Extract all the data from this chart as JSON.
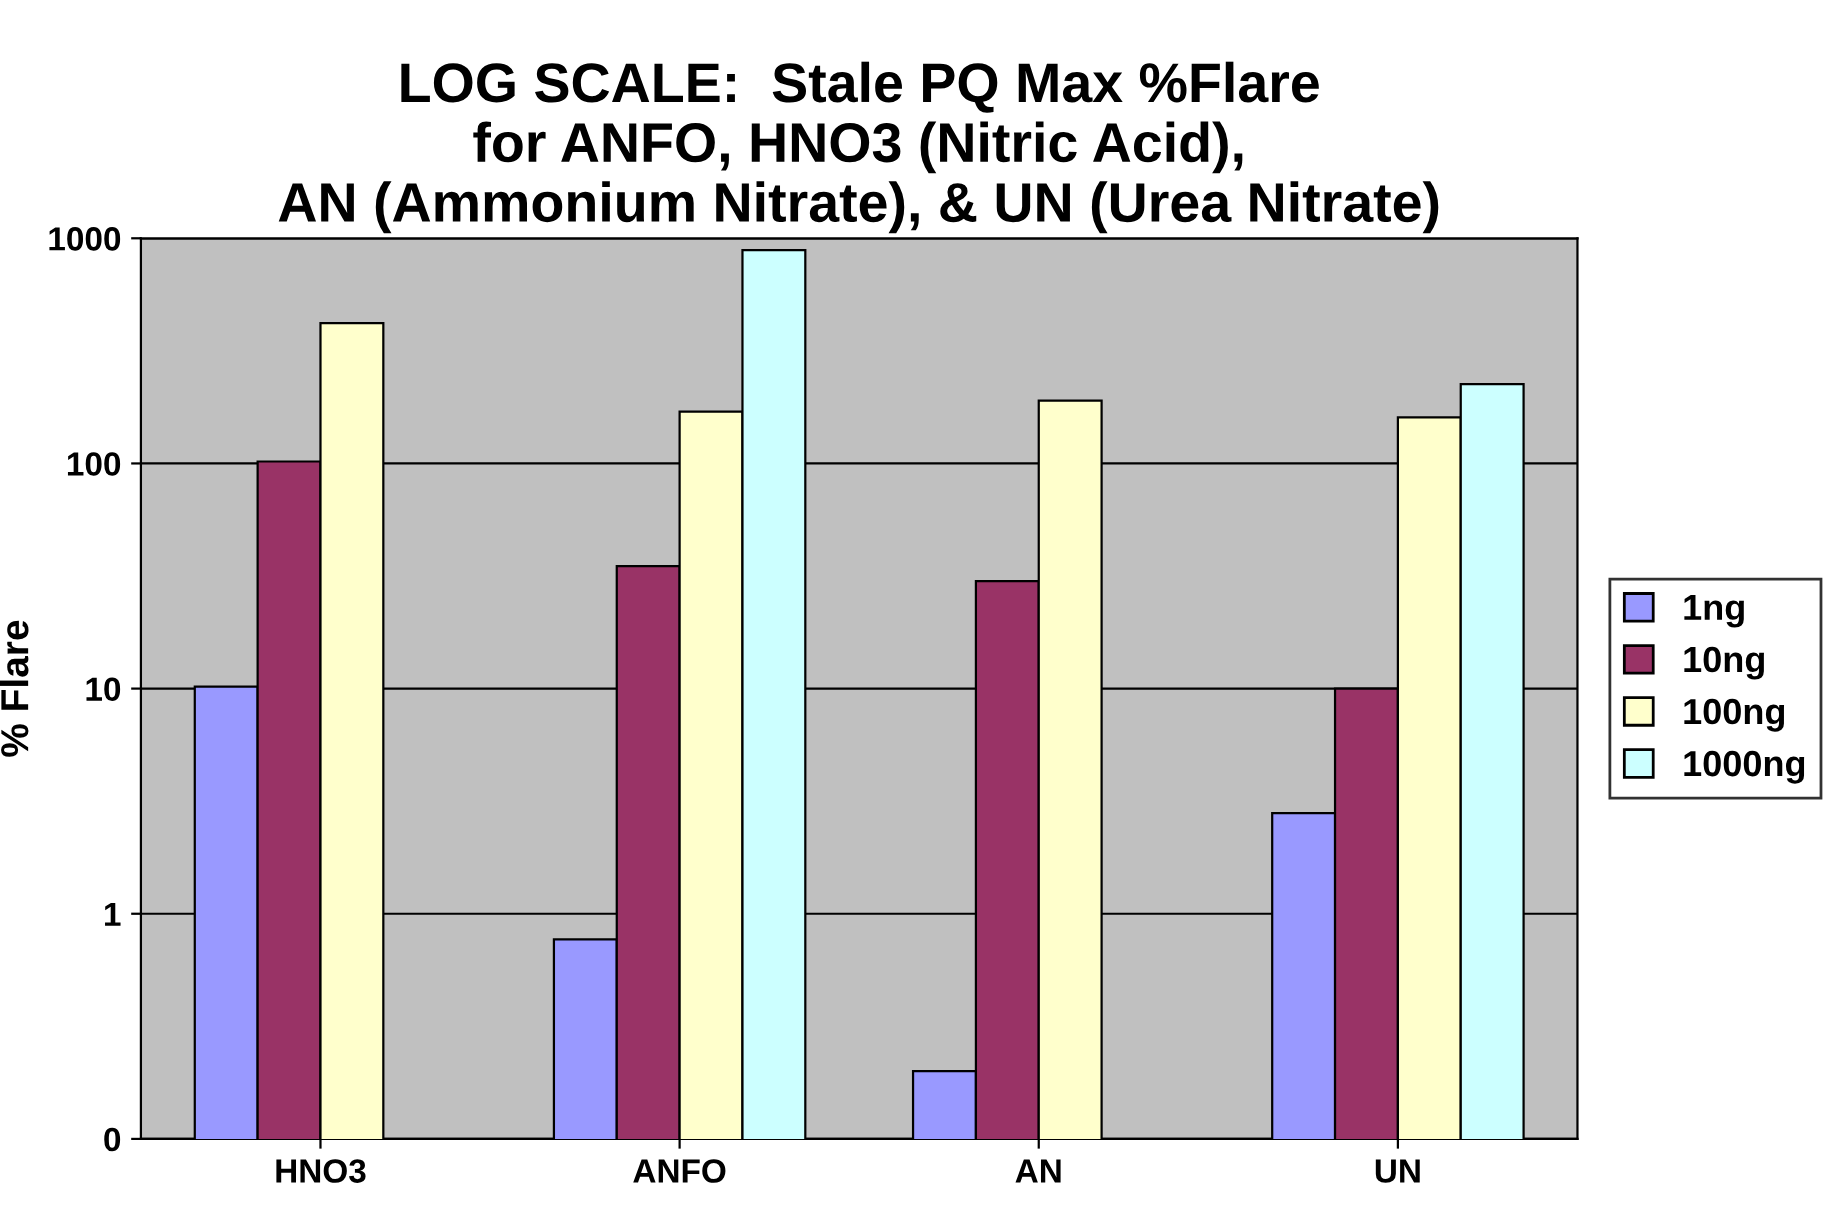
{
  "chart_data": {
    "type": "bar",
    "title": "LOG SCALE:  Stale PQ Max %Flare\nfor ANFO, HNO3 (Nitric Acid),\nAN (Ammonium Nitrate), & UN (Urea Nitrate)",
    "ylabel": "% Flare",
    "categories": [
      "HNO3",
      "ANFO",
      "AN",
      "UN"
    ],
    "series": [
      {
        "name": "1ng",
        "color": "#9999ff",
        "values": [
          10.2,
          0.77,
          0.2,
          2.8
        ]
      },
      {
        "name": "10ng",
        "color": "#993366",
        "values": [
          102,
          35,
          30,
          10
        ]
      },
      {
        "name": "100ng",
        "color": "#ffffcc",
        "values": [
          420,
          170,
          190,
          160
        ]
      },
      {
        "name": "1000ng",
        "color": "#ccffff",
        "values": [
          null,
          885,
          null,
          225
        ]
      }
    ],
    "log": "y",
    "ylim": [
      0.1,
      1000
    ],
    "yticks": [
      {
        "value": 0.1,
        "label": "0"
      },
      1,
      10,
      100,
      1000
    ],
    "grid": "y",
    "legend": "right"
  }
}
